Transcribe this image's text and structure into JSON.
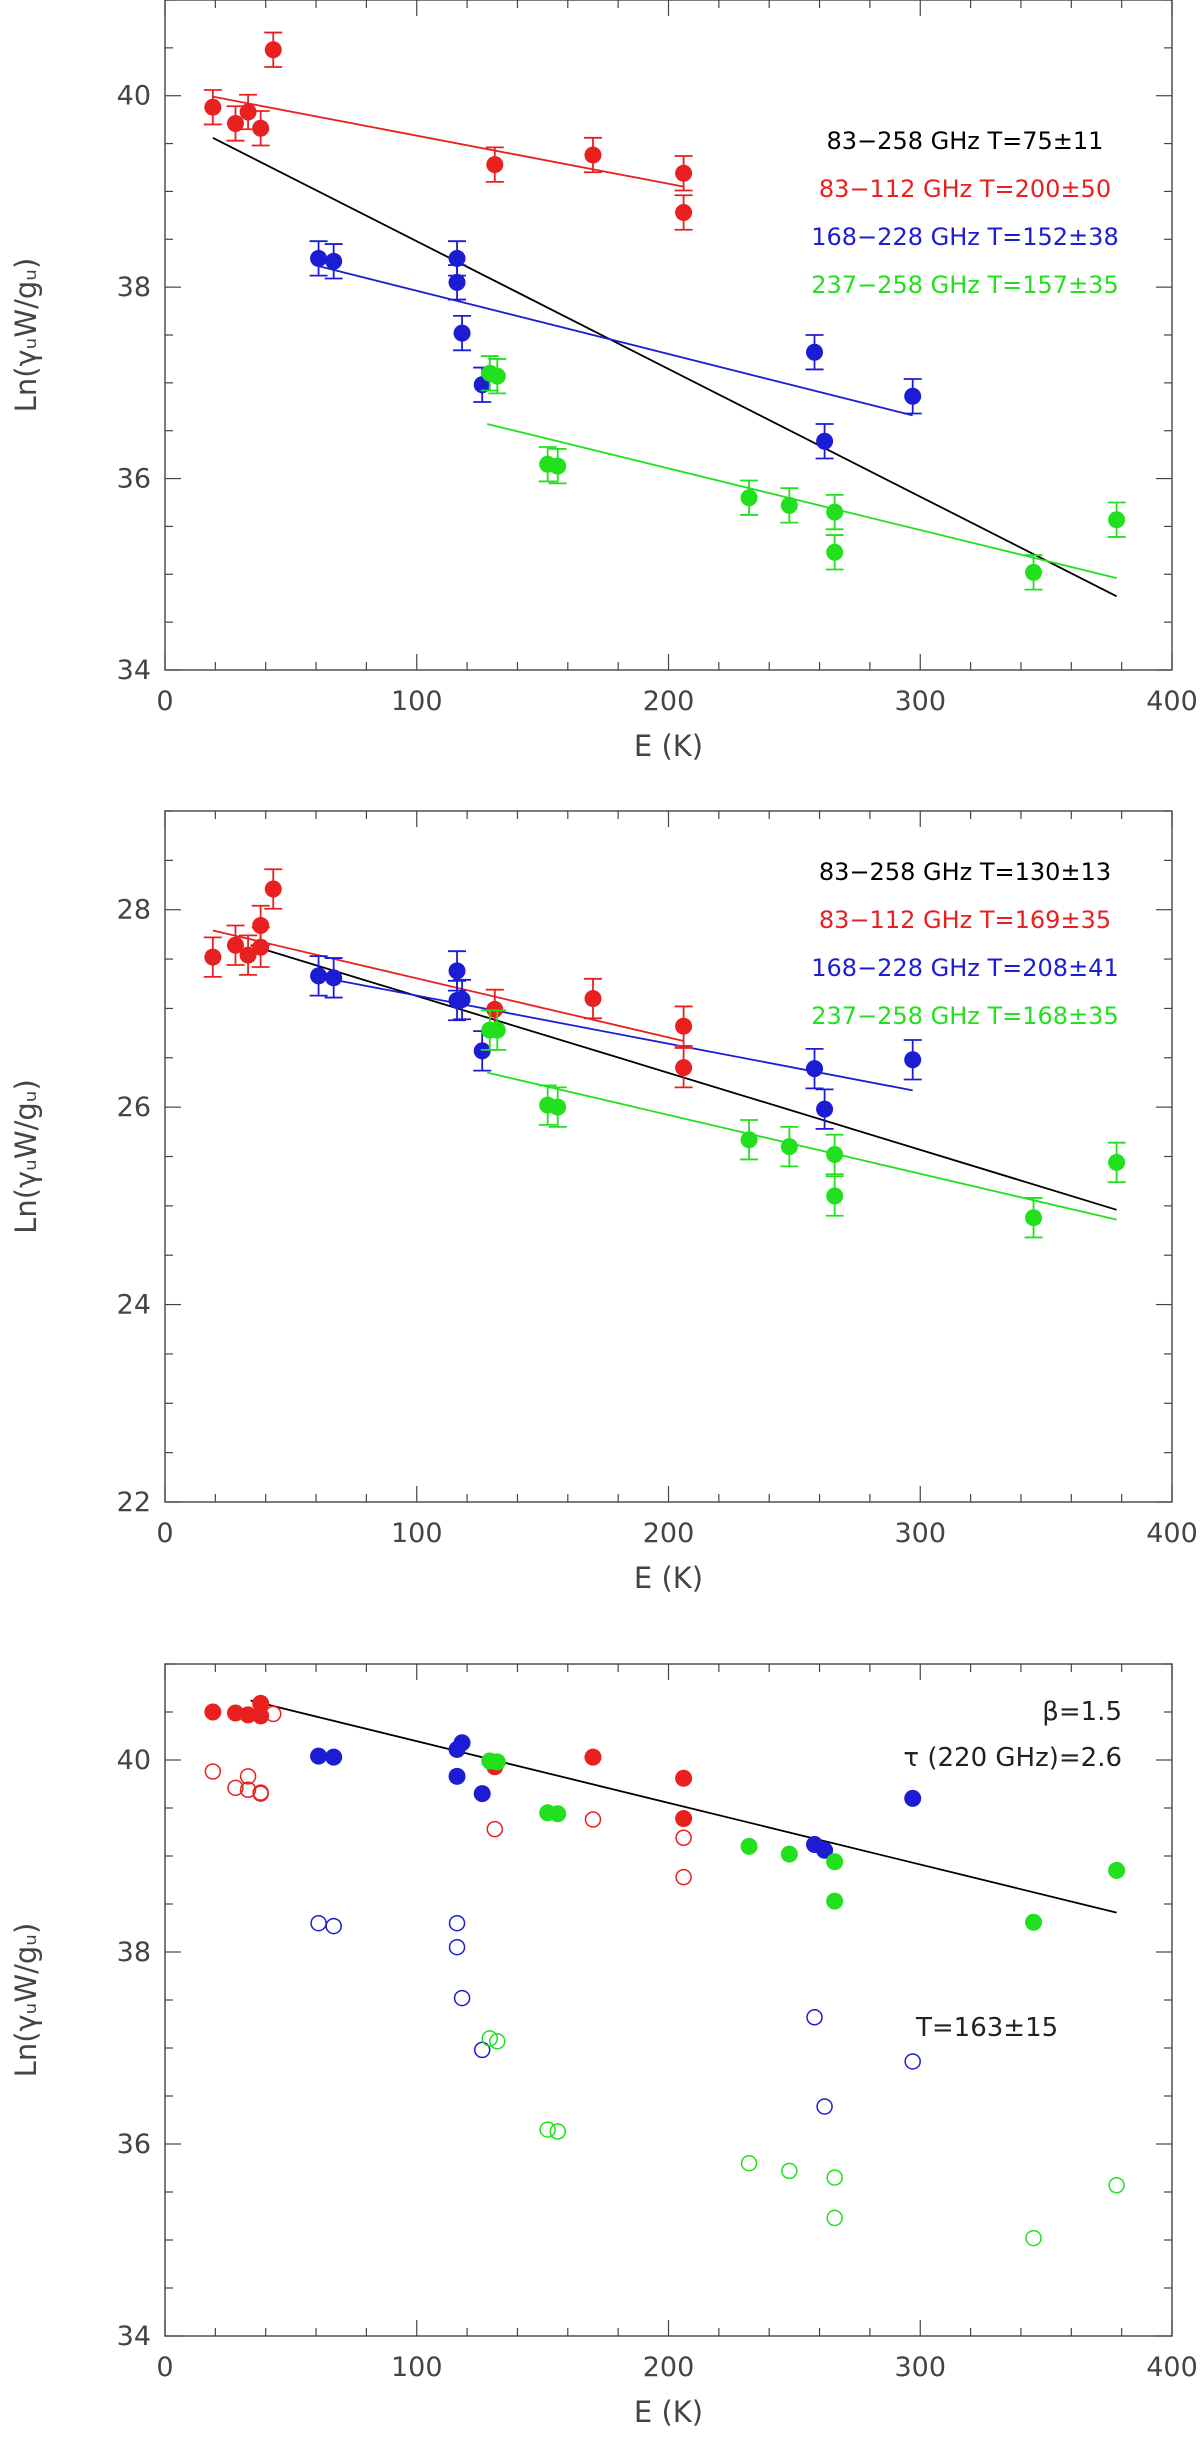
{
  "chart_data": [
    {
      "type": "scatter",
      "xlabel": "E (K)",
      "ylabel": "Ln(γᵤW/gᵤ)",
      "xlim": [
        0,
        400
      ],
      "ylim": [
        34,
        41
      ],
      "xticks": [
        0,
        100,
        200,
        300,
        400
      ],
      "yticks": [
        34,
        36,
        38,
        40
      ],
      "error_bar_size": 0.18,
      "legend": [
        {
          "text": "83−258 GHz  T=75±11",
          "color": "#000000"
        },
        {
          "text": "83−112 GHz  T=200±50",
          "color": "#e8201f"
        },
        {
          "text": "168−228 GHz  T=152±38",
          "color": "#1c1cd4"
        },
        {
          "text": "237−258 GHz  T=157±35",
          "color": "#22e01e"
        }
      ],
      "fits": [
        {
          "name": "83-258 GHz",
          "color": "#000000",
          "x": [
            19,
            378
          ],
          "y": [
            39.56,
            34.77
          ]
        },
        {
          "name": "83-112 GHz",
          "color": "#e8201f",
          "x": [
            19,
            206
          ],
          "y": [
            39.99,
            39.05
          ]
        },
        {
          "name": "168-228 GHz",
          "color": "#1c1cd4",
          "x": [
            61,
            297
          ],
          "y": [
            38.22,
            36.66
          ]
        },
        {
          "name": "237-258 GHz",
          "color": "#22e01e",
          "x": [
            128,
            378
          ],
          "y": [
            36.57,
            34.96
          ]
        }
      ],
      "series": [
        {
          "name": "83-112 GHz",
          "color": "#e8201f",
          "filled": true,
          "errorbars": true,
          "x": [
            19,
            28,
            33,
            38,
            43,
            131,
            170,
            206,
            206
          ],
          "y": [
            39.88,
            39.71,
            39.83,
            39.66,
            40.48,
            39.28,
            39.38,
            39.19,
            38.78
          ]
        },
        {
          "name": "168-228 GHz",
          "color": "#1c1cd4",
          "filled": true,
          "errorbars": true,
          "x": [
            61,
            67,
            116,
            116,
            118,
            126,
            258,
            262,
            297
          ],
          "y": [
            38.3,
            38.27,
            38.3,
            38.05,
            37.52,
            36.98,
            37.32,
            36.39,
            36.86
          ]
        },
        {
          "name": "237-258 GHz",
          "color": "#22e01e",
          "filled": true,
          "errorbars": true,
          "x": [
            129,
            132,
            152,
            156,
            232,
            248,
            266,
            266,
            345,
            378
          ],
          "y": [
            37.1,
            37.07,
            36.15,
            36.13,
            35.8,
            35.72,
            35.65,
            35.23,
            35.02,
            35.57
          ]
        }
      ]
    },
    {
      "type": "scatter",
      "xlabel": "E (K)",
      "ylabel": "Ln(γᵤW/gᵤ)",
      "xlim": [
        0,
        400
      ],
      "ylim": [
        22,
        29
      ],
      "xticks": [
        0,
        100,
        200,
        300,
        400
      ],
      "yticks": [
        22,
        24,
        26,
        28
      ],
      "error_bar_size": 0.2,
      "legend": [
        {
          "text": "83−258 GHz  T=130±13",
          "color": "#000000"
        },
        {
          "text": "83−112 GHz  T=169±35",
          "color": "#e8201f"
        },
        {
          "text": "168−228 GHz  T=208±41",
          "color": "#1c1cd4"
        },
        {
          "text": "237−258 GHz  T=168±35",
          "color": "#22e01e"
        }
      ],
      "fits": [
        {
          "name": "83-258 GHz",
          "color": "#000000",
          "x": [
            34,
            378
          ],
          "y": [
            27.64,
            24.96
          ]
        },
        {
          "name": "83-112 GHz",
          "color": "#e8201f",
          "x": [
            19,
            206
          ],
          "y": [
            27.79,
            26.67
          ]
        },
        {
          "name": "168-228 GHz",
          "color": "#1c1cd4",
          "x": [
            61,
            297
          ],
          "y": [
            27.32,
            26.17
          ]
        },
        {
          "name": "237-258 GHz",
          "color": "#22e01e",
          "x": [
            128,
            378
          ],
          "y": [
            26.35,
            24.86
          ]
        }
      ],
      "series": [
        {
          "name": "83-112 GHz",
          "color": "#e8201f",
          "filled": true,
          "errorbars": true,
          "x": [
            19,
            28,
            33,
            38,
            38,
            43,
            131,
            170,
            206,
            206
          ],
          "y": [
            27.52,
            27.64,
            27.54,
            27.84,
            27.62,
            28.21,
            26.99,
            27.1,
            26.82,
            26.4
          ]
        },
        {
          "name": "168-228 GHz",
          "color": "#1c1cd4",
          "filled": true,
          "errorbars": true,
          "x": [
            61,
            67,
            116,
            116,
            118,
            126,
            258,
            262,
            297
          ],
          "y": [
            27.33,
            27.31,
            27.38,
            27.08,
            27.09,
            26.57,
            26.39,
            25.98,
            26.48
          ]
        },
        {
          "name": "237-258 GHz",
          "color": "#22e01e",
          "filled": true,
          "errorbars": true,
          "x": [
            129,
            132,
            152,
            156,
            232,
            248,
            266,
            266,
            345,
            378
          ],
          "y": [
            26.78,
            26.78,
            26.02,
            26.0,
            25.67,
            25.6,
            25.52,
            25.1,
            24.88,
            25.44
          ]
        }
      ]
    },
    {
      "type": "scatter",
      "xlabel": "E (K)",
      "ylabel": "Ln(γᵤW/gᵤ)",
      "xlim": [
        0,
        400
      ],
      "ylim": [
        34,
        41
      ],
      "xticks": [
        0,
        100,
        200,
        300,
        400
      ],
      "yticks": [
        34,
        36,
        38,
        40
      ],
      "annotations": [
        {
          "text": "β=1.5",
          "anchor": "end"
        },
        {
          "text": "τ (220 GHz)=2.6",
          "anchor": "end"
        },
        {
          "text": "T=163±15",
          "anchor": "start"
        }
      ],
      "fits": [
        {
          "name": "optical depth corrected",
          "color": "#000000",
          "x": [
            34,
            378
          ],
          "y": [
            40.62,
            38.41
          ]
        }
      ],
      "series": [
        {
          "name": "83-112 GHz corrected",
          "color": "#e8201f",
          "filled": true,
          "errorbars": false,
          "x": [
            19,
            28,
            33,
            38,
            38,
            131,
            170,
            206,
            206
          ],
          "y": [
            40.5,
            40.49,
            40.47,
            40.59,
            40.46,
            39.93,
            40.03,
            39.81,
            39.39
          ]
        },
        {
          "name": "168-228 GHz corrected",
          "color": "#1c1cd4",
          "filled": true,
          "errorbars": false,
          "x": [
            61,
            67,
            116,
            116,
            118,
            126,
            258,
            262,
            297
          ],
          "y": [
            40.04,
            40.03,
            40.11,
            39.83,
            40.18,
            39.65,
            39.12,
            39.06,
            39.6
          ]
        },
        {
          "name": "237-258 GHz corrected",
          "color": "#22e01e",
          "filled": true,
          "errorbars": false,
          "x": [
            129,
            132,
            152,
            156,
            232,
            248,
            266,
            266,
            345,
            378
          ],
          "y": [
            39.99,
            39.98,
            39.45,
            39.44,
            39.1,
            39.02,
            38.94,
            38.53,
            38.31,
            38.85
          ]
        },
        {
          "name": "83-112 GHz uncorrected",
          "color": "#e8201f",
          "filled": false,
          "errorbars": false,
          "x": [
            19,
            28,
            33,
            33,
            38,
            38,
            43,
            131,
            170,
            206,
            206
          ],
          "y": [
            39.88,
            39.71,
            39.83,
            39.69,
            39.66,
            39.65,
            40.48,
            39.28,
            39.38,
            39.19,
            38.78
          ]
        },
        {
          "name": "168-228 GHz uncorrected",
          "color": "#1c1cd4",
          "filled": false,
          "errorbars": false,
          "x": [
            61,
            67,
            116,
            116,
            118,
            126,
            258,
            262,
            297
          ],
          "y": [
            38.3,
            38.27,
            38.3,
            38.05,
            37.52,
            36.98,
            37.32,
            36.39,
            36.86
          ]
        },
        {
          "name": "237-258 GHz uncorrected",
          "color": "#22e01e",
          "filled": false,
          "errorbars": false,
          "x": [
            129,
            132,
            152,
            156,
            232,
            248,
            266,
            266,
            345,
            378
          ],
          "y": [
            37.1,
            37.07,
            36.15,
            36.13,
            35.8,
            35.72,
            35.65,
            35.23,
            35.02,
            35.57
          ]
        }
      ]
    }
  ]
}
